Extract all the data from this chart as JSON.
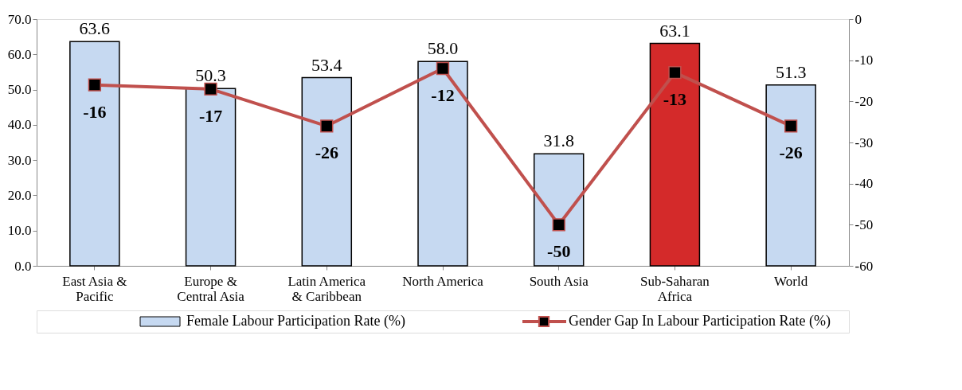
{
  "chart_data": {
    "type": "bar",
    "categories": [
      "East Asia &\nPacific",
      "Europe &\nCentral Asia",
      "Latin America\n& Caribbean",
      "North America",
      "South Asia",
      "Sub-Saharan\nAfrica",
      "World"
    ],
    "ylim": [
      0,
      70
    ],
    "yticks": [
      {
        "value": 0,
        "label": "0.0"
      },
      {
        "value": 10,
        "label": "10.0"
      },
      {
        "value": 20,
        "label": "20.0"
      },
      {
        "value": 30,
        "label": "30.0"
      },
      {
        "value": 40,
        "label": "40.0"
      },
      {
        "value": 50,
        "label": "50.0"
      },
      {
        "value": 60,
        "label": "60.0"
      },
      {
        "value": 70,
        "label": "70.0"
      }
    ],
    "y2lim": [
      -60,
      0
    ],
    "y2ticks": [
      -60,
      -50,
      -40,
      -30,
      -20,
      -10,
      0
    ],
    "data_labels": true,
    "grid": false,
    "legend": "bottom",
    "marker": "square",
    "line_style": "solid",
    "series": [
      {
        "name": "Female Labour Participation Rate (%)",
        "color": "#c6d9f1",
        "colors": [
          "#c6d9f1",
          "#c6d9f1",
          "#c6d9f1",
          "#c6d9f1",
          "#c6d9f1",
          "#d42a2a",
          "#c6d9f1"
        ],
        "values": [
          63.6,
          50.3,
          53.4,
          58.0,
          31.8,
          63.1,
          51.3
        ],
        "value_labels": [
          "63.6",
          "50.3",
          "53.4",
          "58.0",
          "31.8",
          "63.1",
          "51.3"
        ]
      },
      {
        "name": "Gender Gap In Labour Participation Rate (%)",
        "type": "line",
        "axis": "y2",
        "color": "#c0504d",
        "values": [
          -16,
          -17,
          -26,
          -12,
          -50,
          -13,
          -26
        ]
      }
    ]
  }
}
